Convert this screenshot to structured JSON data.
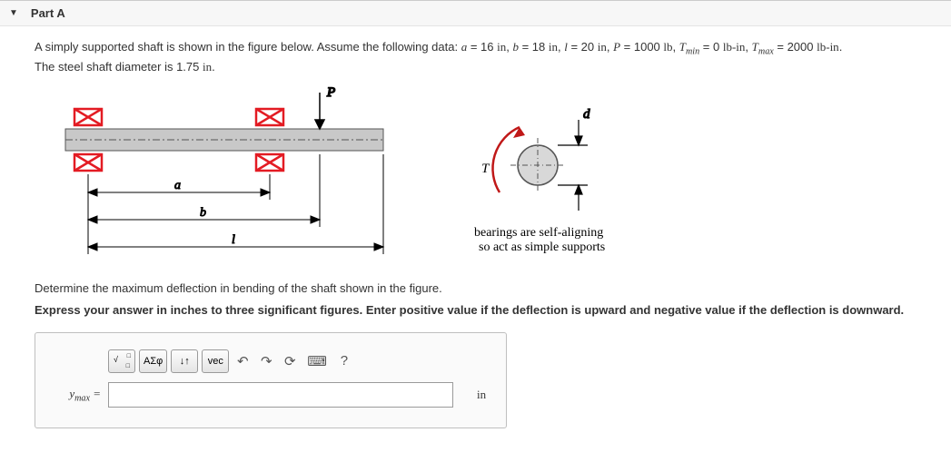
{
  "header": {
    "part_label": "Part A"
  },
  "problem": {
    "intro_html": "A simply supported shaft is shown in the figure below. Assume the following data: <i>a</i> = 16 <span class='mathunit'>in</span>, <i>b</i> = 18 <span class='mathunit'>in</span>, <i>l</i> = 20 <span class='mathunit'>in</span>, <i>P</i> = 1000 <span class='mathunit'>lb</span>, <i>T<span class='sub'>min</span></i> = 0 <span class='mathunit'>lb-in</span>, <i>T<span class='sub'>max</span></i> = 2000 <span class='mathunit'>lb-in</span>.",
    "line2_html": "The steel shaft diameter is 1.75 <span class='mathunit'>in</span>."
  },
  "figure": {
    "colors": {
      "shaft_fill": "#c8c8c8",
      "shaft_stroke": "#555555",
      "bearing": "#e31b23",
      "label": "#000000",
      "torque": "#c01818",
      "dim_line": "#000000",
      "caption": "#000000"
    },
    "labels": {
      "P": "P",
      "a": "a",
      "b": "b",
      "l": "l",
      "T": "T",
      "d": "d"
    },
    "caption_line1": "bearings are self-aligning",
    "caption_line2": "so act as simple supports"
  },
  "question": {
    "q_text": "Determine the maximum deflection in bending of the shaft shown in the figure.",
    "instruction": "Express your answer in inches to three significant figures. Enter positive value if the deflection is upward and negative value if the deflection is downward."
  },
  "answer": {
    "toolbar": {
      "templates": "Tpl",
      "greek": "ΑΣφ",
      "subsup": "↓↑",
      "vec": "vec",
      "undo": "↶",
      "redo": "↷",
      "reset": "⟳",
      "keyboard": "⌨",
      "help": "?"
    },
    "label_html": "y<span class='sub'>max</span> =",
    "value": "",
    "unit": "in"
  }
}
